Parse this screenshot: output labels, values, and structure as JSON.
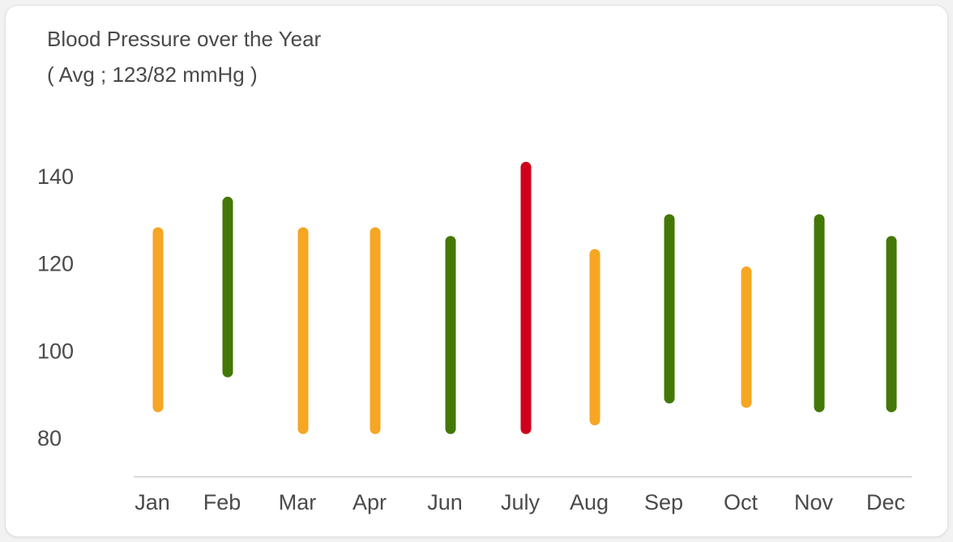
{
  "chart_data": {
    "type": "range-bar",
    "title": "Blood Pressure over the Year",
    "subtitle": "( Avg ; 123/82 mmHg )",
    "xlabel": "",
    "ylabel": "",
    "ylim": [
      72,
      150
    ],
    "yticks": [
      "140",
      "120",
      "100",
      "80"
    ],
    "categories": [
      "Jan",
      "Feb",
      "Mar",
      "Apr",
      "Jun",
      "July",
      "Aug",
      "Sep",
      "Oct",
      "Nov",
      "Dec"
    ],
    "series": [
      {
        "low": [
          87,
          95,
          82,
          82,
          82,
          82,
          84,
          89,
          88,
          87,
          87
        ],
        "high": [
          127,
          134,
          127,
          127,
          125,
          142,
          122,
          130,
          118,
          130,
          125
        ],
        "status": [
          "elevated",
          "normal",
          "elevated",
          "elevated",
          "normal",
          "high",
          "elevated",
          "normal",
          "elevated",
          "normal",
          "normal"
        ]
      }
    ],
    "colors": {
      "normal": "#437806",
      "elevated": "#f5a623",
      "high": "#d0021b",
      "axis": "#cccccc",
      "text": "#4a4a4a"
    },
    "grid": false,
    "legend": "none"
  }
}
